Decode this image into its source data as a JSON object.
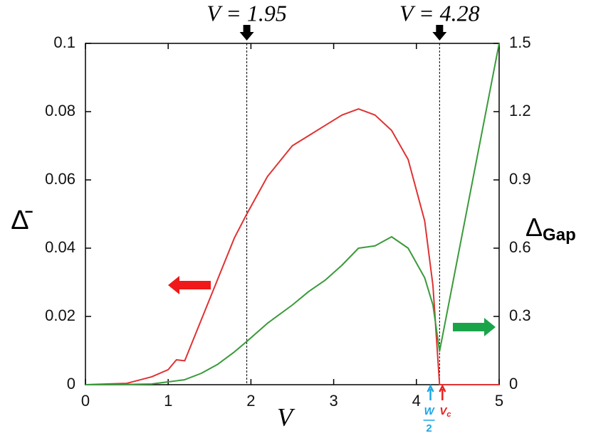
{
  "chart_data": {
    "type": "line",
    "x_label": "V",
    "y_label": "Δ̄",
    "y2_label": {
      "text": "Δ",
      "sub": "Gap"
    },
    "x": [
      0,
      0.5,
      0.8,
      1.0,
      1.1,
      1.2,
      1.4,
      1.6,
      1.8,
      1.95,
      2.2,
      2.5,
      2.7,
      2.9,
      3.1,
      3.3,
      3.5,
      3.7,
      3.9,
      4.1,
      4.2,
      4.28,
      5
    ],
    "series": [
      {
        "color": "#e03232",
        "values": [
          0,
          0.0004,
          0.0023,
          0.0044,
          0.0073,
          0.007,
          0.019,
          0.031,
          0.043,
          0.05,
          0.061,
          0.07,
          0.073,
          0.076,
          0.079,
          0.0808,
          0.079,
          0.0745,
          0.066,
          0.048,
          0.029,
          0,
          0
        ]
      },
      {
        "color": "#3a9a3a",
        "axis": "y2",
        "values": [
          0,
          0.001,
          0.003,
          0.0125,
          0.017,
          0.022,
          0.05,
          0.09,
          0.144,
          0.19,
          0.27,
          0.35,
          0.41,
          0.46,
          0.525,
          0.6,
          0.61,
          0.65,
          0.6,
          0.47,
          0.35,
          0.147,
          1.5
        ]
      }
    ],
    "xlim": [
      0,
      5
    ],
    "xticks": [
      0,
      1,
      2,
      3,
      4,
      5
    ],
    "ylim": [
      0,
      0.1
    ],
    "yticks": [
      0,
      0.02,
      0.04,
      0.06,
      0.08,
      0.1
    ],
    "y2lim": [
      0,
      1.5
    ],
    "y2ticks": [
      0,
      0.3,
      0.6,
      0.9,
      1.2,
      1.5
    ],
    "annotations": [
      {
        "text": "V = 1.95",
        "x": 1.95
      },
      {
        "text": "V = 4.28",
        "x": 4.28
      }
    ],
    "w_half": {
      "numerator": "W",
      "denominator": "2",
      "x": 4.17
    },
    "vc": {
      "text": "V",
      "sub": "c",
      "x": 4.28
    }
  }
}
